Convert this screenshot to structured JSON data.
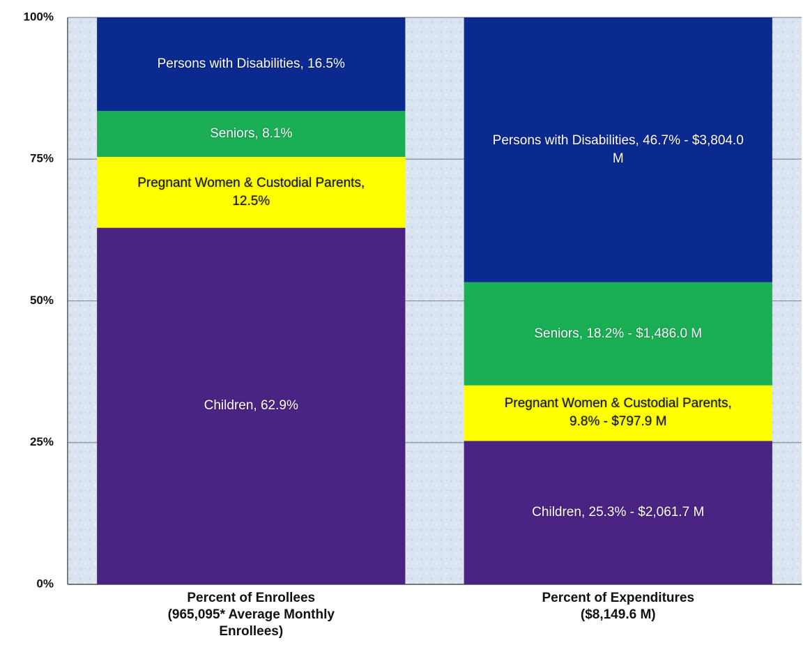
{
  "chart_data": {
    "type": "stacked-bar",
    "categories": [
      "Percent of Enrollees (965,095* Average Monthly Enrollees)",
      "Percent of Expenditures ($8,149.6 M)"
    ],
    "series": [
      {
        "color": "#4b2483",
        "values": [
          62.9,
          25.3
        ],
        "value_labels": [
          "Children, 62.9%",
          "Children, 25.3% - $2,061.7 M"
        ]
      },
      {
        "color": "#ffff00",
        "values": [
          12.5,
          9.8
        ],
        "value_labels": [
          "Pregnant Women & Custodial Parents, 12.5%",
          "Pregnant Women & Custodial Parents, 9.8% - $797.9 M"
        ]
      },
      {
        "color": "#1aae55",
        "values": [
          8.1,
          18.2
        ],
        "value_labels": [
          "Seniors, 8.1%",
          "Seniors, 18.2% - $1,486.0 M"
        ]
      },
      {
        "color": "#0b2a8f",
        "values": [
          16.5,
          46.7
        ],
        "value_labels": [
          "Persons with Disabilities, 16.5%",
          "Persons with Disabilities, 46.7% - $3,804.0 M"
        ]
      }
    ],
    "ylim": [
      0,
      100
    ],
    "yticks": [
      {
        "value": 0,
        "label": "0%"
      },
      {
        "value": 25,
        "label": "25%"
      },
      {
        "value": 50,
        "label": "50%"
      },
      {
        "value": 75,
        "label": "75%"
      },
      {
        "value": 100,
        "label": "100%"
      }
    ],
    "grid": true
  }
}
